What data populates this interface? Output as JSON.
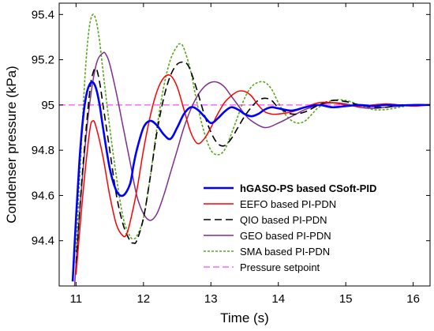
{
  "chart_data": {
    "type": "line",
    "xlabel": "Time (s)",
    "ylabel": "Condenser pressure (kPa)",
    "xlim": [
      10.75,
      16.25
    ],
    "ylim": [
      94.2,
      95.45
    ],
    "xticks": [
      11,
      12,
      13,
      14,
      15,
      16
    ],
    "yticks": [
      94.4,
      94.6,
      94.8,
      95,
      95.2,
      95.4
    ],
    "ytick_labels": [
      "94.4",
      "94.6",
      "94.8",
      "95",
      "95.2",
      "95.4"
    ],
    "grid": false,
    "legend_position": "bottom-right",
    "series": [
      {
        "name": "hGASO-PS based CSoft-PID",
        "color": "#0000ff",
        "dash": "solid",
        "width": 2.6,
        "bold": true,
        "x": [
          10.95,
          11.0,
          11.05,
          11.1,
          11.15,
          11.2,
          11.25,
          11.3,
          11.35,
          11.4,
          11.5,
          11.6,
          11.7,
          11.8,
          11.85,
          11.9,
          12.0,
          12.1,
          12.2,
          12.3,
          12.4,
          12.5,
          12.6,
          12.7,
          12.8,
          12.9,
          13.0,
          13.1,
          13.2,
          13.3,
          13.4,
          13.5,
          13.6,
          13.7,
          13.8,
          13.9,
          14.0,
          14.2,
          14.4,
          14.6,
          14.8,
          15.0,
          15.2,
          15.4,
          15.6,
          15.8,
          16.0,
          16.25
        ],
        "y": [
          94.22,
          94.5,
          94.75,
          94.93,
          95.04,
          95.09,
          95.1,
          95.07,
          95.0,
          94.9,
          94.72,
          94.62,
          94.6,
          94.65,
          94.73,
          94.8,
          94.9,
          94.93,
          94.91,
          94.87,
          94.85,
          94.9,
          94.96,
          94.99,
          94.98,
          94.95,
          94.92,
          94.94,
          94.97,
          94.99,
          94.98,
          94.96,
          94.95,
          94.96,
          94.98,
          94.99,
          94.985,
          94.975,
          94.99,
          95.0,
          94.99,
          94.995,
          95.0,
          94.995,
          95.0,
          94.998,
          95.0,
          95.0
        ]
      },
      {
        "name": "EEFO based PI-PDN",
        "color": "#ff0000",
        "dash": "solid",
        "width": 1.5,
        "bold": false,
        "x": [
          11.0,
          11.1,
          11.2,
          11.25,
          11.3,
          11.4,
          11.5,
          11.6,
          11.7,
          11.75,
          11.8,
          11.9,
          12.0,
          12.1,
          12.2,
          12.3,
          12.4,
          12.5,
          12.6,
          12.7,
          12.8,
          12.9,
          13.0,
          13.1,
          13.2,
          13.3,
          13.4,
          13.5,
          13.6,
          13.7,
          13.8,
          13.9,
          14.0,
          14.2,
          14.4,
          14.6,
          14.8,
          15.0,
          15.2,
          15.4,
          15.6,
          15.8,
          16.0,
          16.25
        ],
        "y": [
          94.25,
          94.6,
          94.88,
          94.93,
          94.9,
          94.77,
          94.6,
          94.47,
          94.42,
          94.43,
          94.48,
          94.62,
          94.8,
          94.95,
          95.06,
          95.12,
          95.13,
          95.08,
          94.98,
          94.88,
          94.83,
          94.85,
          94.9,
          94.96,
          95.01,
          95.04,
          95.06,
          95.06,
          95.04,
          95.0,
          94.97,
          94.96,
          94.96,
          94.97,
          94.99,
          95.01,
          95.01,
          95.0,
          94.995,
          95.0,
          95.005,
          95.0,
          94.995,
          95.0
        ]
      },
      {
        "name": "QIO based PI-PDN",
        "color": "#000000",
        "dash": "9,5",
        "width": 1.6,
        "bold": false,
        "x": [
          11.0,
          11.1,
          11.2,
          11.25,
          11.3,
          11.35,
          11.4,
          11.5,
          11.6,
          11.7,
          11.8,
          11.85,
          11.9,
          12.0,
          12.1,
          12.2,
          12.3,
          12.4,
          12.5,
          12.6,
          12.65,
          12.7,
          12.8,
          12.9,
          13.0,
          13.1,
          13.2,
          13.3,
          13.4,
          13.5,
          13.6,
          13.7,
          13.8,
          13.9,
          14.0,
          14.2,
          14.4,
          14.6,
          14.8,
          15.0,
          15.2,
          15.4,
          15.6,
          15.8,
          16.0,
          16.25
        ],
        "y": [
          94.3,
          94.72,
          95.05,
          95.14,
          95.16,
          95.1,
          95.0,
          94.8,
          94.6,
          94.47,
          94.4,
          94.39,
          94.4,
          94.5,
          94.68,
          94.88,
          95.03,
          95.13,
          95.18,
          95.19,
          95.18,
          95.15,
          95.06,
          94.96,
          94.88,
          94.83,
          94.82,
          94.85,
          94.9,
          94.95,
          94.99,
          95.02,
          95.03,
          95.02,
          94.99,
          94.96,
          94.97,
          95.0,
          95.02,
          95.015,
          95.0,
          94.99,
          94.99,
          95.0,
          95.0,
          95.0
        ]
      },
      {
        "name": "GEO based PI-PDN",
        "color": "#7e2f8e",
        "dash": "solid",
        "width": 1.5,
        "bold": false,
        "x": [
          10.95,
          11.0,
          11.1,
          11.2,
          11.3,
          11.4,
          11.45,
          11.5,
          11.6,
          11.7,
          11.8,
          11.9,
          12.0,
          12.1,
          12.2,
          12.3,
          12.4,
          12.5,
          12.6,
          12.7,
          12.8,
          12.9,
          13.0,
          13.1,
          13.2,
          13.3,
          13.4,
          13.5,
          13.6,
          13.8,
          14.0,
          14.2,
          14.4,
          14.6,
          14.8,
          15.0,
          15.2,
          15.4,
          15.6,
          15.8,
          16.0,
          16.25
        ],
        "y": [
          94.05,
          94.3,
          94.7,
          95.0,
          95.18,
          95.23,
          95.22,
          95.18,
          95.05,
          94.9,
          94.75,
          94.6,
          94.52,
          94.49,
          94.52,
          94.6,
          94.7,
          94.8,
          94.9,
          94.98,
          95.04,
          95.08,
          95.1,
          95.1,
          95.08,
          95.04,
          95.0,
          94.96,
          94.93,
          94.9,
          94.92,
          94.95,
          94.98,
          95.0,
          95.01,
          95.005,
          94.99,
          94.985,
          94.99,
          94.995,
          95.0,
          95.0
        ]
      },
      {
        "name": "SMA based PI-PDN",
        "color": "#58a618",
        "dash": "3,2",
        "width": 1.6,
        "bold": false,
        "x": [
          11.0,
          11.1,
          11.15,
          11.2,
          11.25,
          11.3,
          11.35,
          11.4,
          11.5,
          11.6,
          11.7,
          11.8,
          11.85,
          11.9,
          12.0,
          12.1,
          12.2,
          12.3,
          12.4,
          12.5,
          12.55,
          12.6,
          12.7,
          12.8,
          12.9,
          13.0,
          13.1,
          13.2,
          13.3,
          13.4,
          13.5,
          13.6,
          13.7,
          13.8,
          13.9,
          14.0,
          14.1,
          14.2,
          14.3,
          14.4,
          14.5,
          14.6,
          14.8,
          15.0,
          15.2,
          15.4,
          15.6,
          15.8,
          16.0,
          16.25
        ],
        "y": [
          94.35,
          94.95,
          95.2,
          95.35,
          95.4,
          95.37,
          95.28,
          95.15,
          94.9,
          94.68,
          94.5,
          94.42,
          94.41,
          94.42,
          94.5,
          94.68,
          94.9,
          95.08,
          95.2,
          95.26,
          95.27,
          95.25,
          95.15,
          95.0,
          94.88,
          94.8,
          94.78,
          94.8,
          94.87,
          94.95,
          95.03,
          95.08,
          95.1,
          95.1,
          95.07,
          95.01,
          94.96,
          94.93,
          94.92,
          94.93,
          94.96,
          94.99,
          95.02,
          95.02,
          95.0,
          94.98,
          94.98,
          94.99,
          95.0,
          95.0
        ]
      },
      {
        "name": "Pressure setpoint",
        "color": "#ff66ff",
        "dash": "8,4",
        "width": 1.5,
        "bold": false,
        "x": [
          10.75,
          16.25
        ],
        "y": [
          95.0,
          95.0
        ]
      }
    ]
  }
}
